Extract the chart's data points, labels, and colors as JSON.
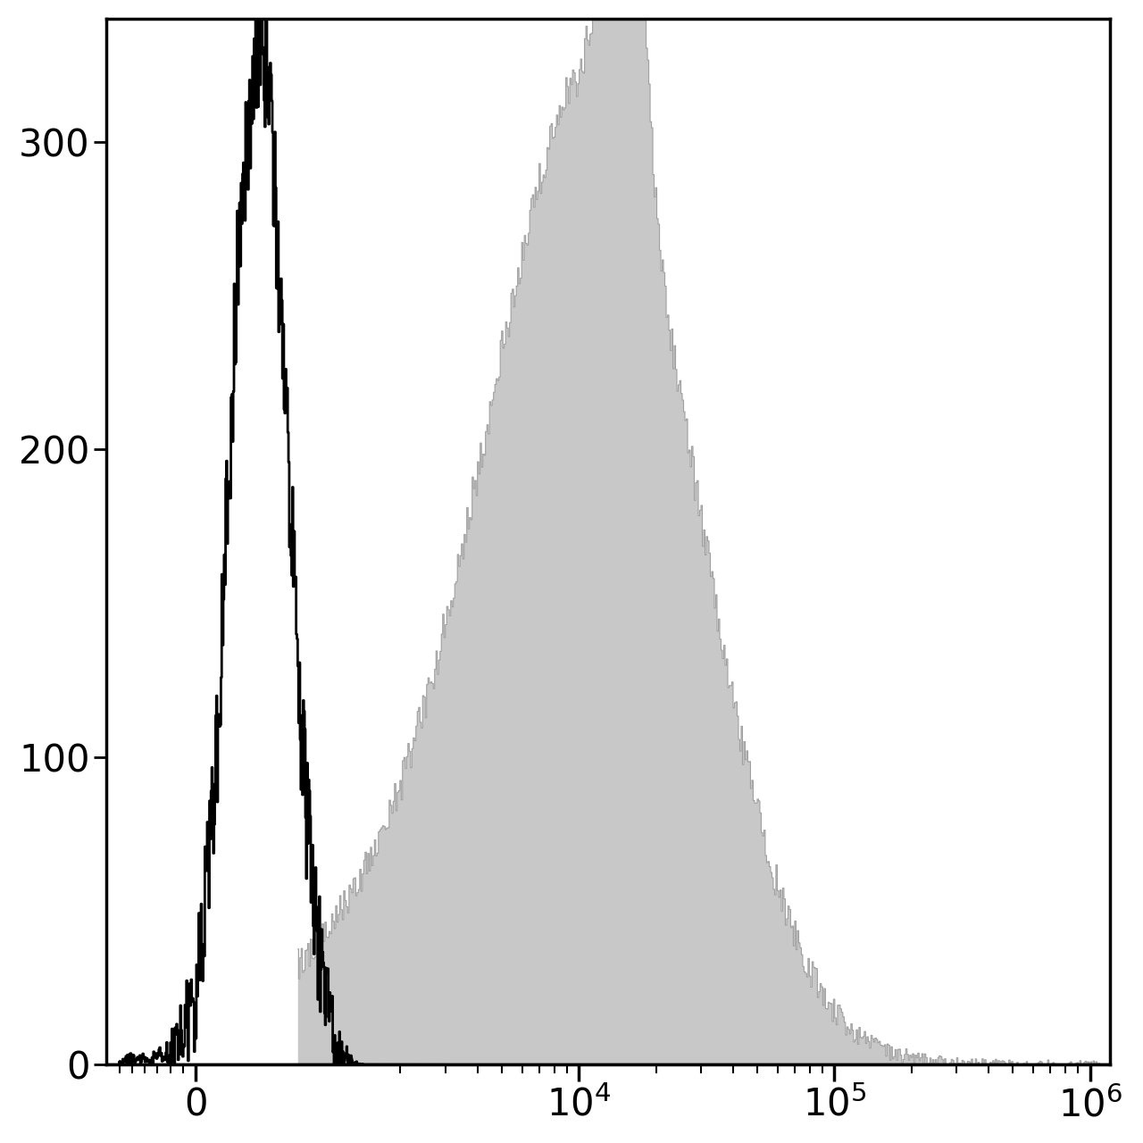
{
  "background_color": "#ffffff",
  "black_hist_color": "#000000",
  "gray_fill_color": "#c8c8c8",
  "gray_edge_color": "#a0a0a0",
  "ylim": [
    0,
    340
  ],
  "yticks": [
    0,
    100,
    200,
    300
  ],
  "tick_fontsize": 30,
  "spine_linewidth": 2.5,
  "linthresh": 1000,
  "xlim_min": -700,
  "xlim_max": 1200000
}
